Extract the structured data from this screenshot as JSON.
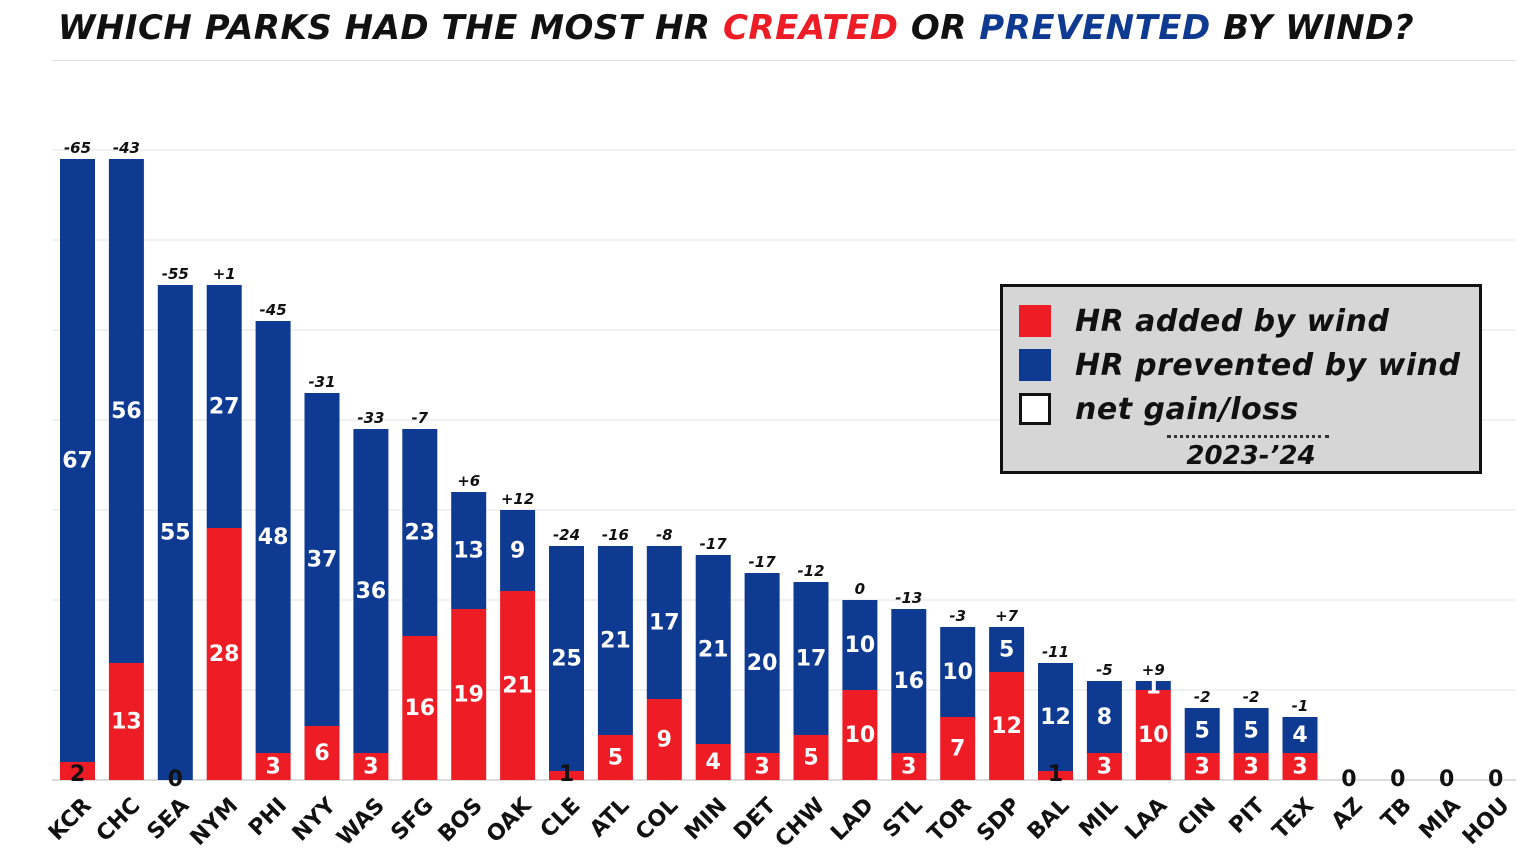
{
  "title": {
    "part1": "WHICH PARKS HAD THE MOST HR ",
    "created": "CREATED",
    "part2": " OR ",
    "prevented": "PREVENTED",
    "part3": " BY WIND?"
  },
  "legend": {
    "added": "HR added by wind",
    "prevented": "HR prevented by wind",
    "net": "net gain/loss",
    "years": "2023-’24"
  },
  "colors": {
    "added": "#ee1c25",
    "prevented": "#0e3a92",
    "grid": "#e3e3e3",
    "legend_bg": "#d6d6d6"
  },
  "chart_data": {
    "type": "bar",
    "stacked": true,
    "title": "WHICH PARKS HAD THE MOST HR CREATED OR PREVENTED BY WIND?",
    "xlabel": "",
    "ylabel": "",
    "ylim": [
      0,
      70
    ],
    "grid": true,
    "legend_position": "right",
    "categories": [
      "KCR",
      "CHC",
      "SEA",
      "NYM",
      "PHI",
      "NYY",
      "WAS",
      "SFG",
      "BOS",
      "OAK",
      "CLE",
      "ATL",
      "COL",
      "MIN",
      "DET",
      "CHW",
      "LAD",
      "STL",
      "TOR",
      "SDP",
      "BAL",
      "MIL",
      "LAA",
      "CIN",
      "PIT",
      "TEX",
      "AZ",
      "TB",
      "MIA",
      "HOU"
    ],
    "series": [
      {
        "name": "HR added by wind",
        "values": [
          2,
          13,
          0,
          28,
          3,
          6,
          3,
          16,
          19,
          21,
          1,
          5,
          9,
          4,
          3,
          5,
          10,
          3,
          7,
          12,
          1,
          3,
          10,
          3,
          3,
          3,
          0,
          0,
          0,
          0
        ]
      },
      {
        "name": "HR prevented by wind",
        "values": [
          67,
          56,
          55,
          27,
          48,
          37,
          36,
          23,
          13,
          9,
          25,
          21,
          17,
          21,
          20,
          17,
          10,
          16,
          10,
          5,
          12,
          8,
          1,
          5,
          5,
          4,
          0,
          0,
          0,
          0
        ]
      }
    ],
    "net_labels": [
      "-65",
      "-43",
      "-55",
      "+1",
      "-45",
      "-31",
      "-33",
      "-7",
      "+6",
      "+12",
      "-24",
      "-16",
      "-8",
      "-17",
      "-17",
      "-12",
      "0",
      "-13",
      "-3",
      "+7",
      "-11",
      "-5",
      "+9",
      "-2",
      "-2",
      "-1",
      "",
      "",
      "",
      ""
    ],
    "zero_labels": [
      "",
      "",
      "0",
      "",
      "",
      "",
      "",
      "",
      "",
      "",
      "",
      "",
      "",
      "",
      "",
      "",
      "",
      "",
      "",
      "",
      "",
      "",
      "",
      "",
      "",
      "",
      "0",
      "0",
      "0",
      "0"
    ]
  }
}
